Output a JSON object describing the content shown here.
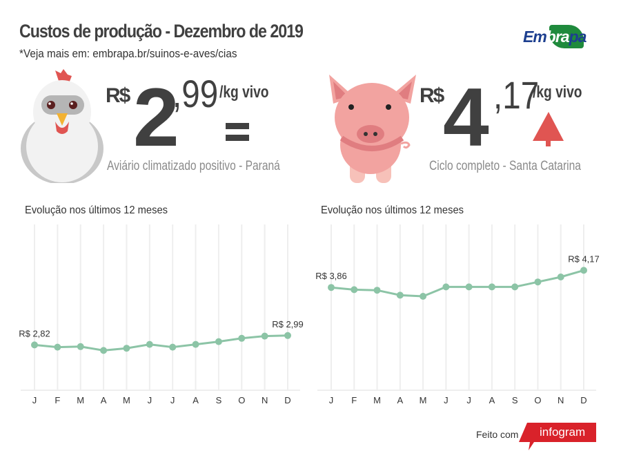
{
  "header": {
    "title": "Custos de produção - Dezembro de 2019",
    "subtitle": "*Veja mais em: embrapa.br/suinos-e-aves/cias",
    "logo": "Embrapa"
  },
  "chicken": {
    "icon": "chicken-icon",
    "currency": "R$",
    "integer": "2",
    "decimal": ",99",
    "unit": "/kg vivo",
    "trend": "equal",
    "trend_icon": "equals-icon",
    "description": "Aviário climatizado positivo - Paraná"
  },
  "pig": {
    "icon": "pig-icon",
    "currency": "R$",
    "integer": "4",
    "decimal": ",17",
    "unit": "/kg vivo",
    "trend": "up",
    "trend_icon": "arrow-up-icon",
    "trend_color": "#e05552",
    "description": "Ciclo completo - Santa Catarina"
  },
  "footer": {
    "made_with": "Feito com",
    "brand": "infogram",
    "brand_color": "#d9222a"
  },
  "colors": {
    "line": "#8cc4a6",
    "text": "#404040",
    "grid": "#eeeeee"
  },
  "chart_data": [
    {
      "type": "line",
      "title": "Evolução nos últimos 12 meses",
      "categories": [
        "J",
        "F",
        "M",
        "A",
        "M",
        "J",
        "J",
        "A",
        "S",
        "O",
        "N",
        "D"
      ],
      "values": [
        2.82,
        2.78,
        2.79,
        2.72,
        2.76,
        2.83,
        2.78,
        2.83,
        2.88,
        2.94,
        2.98,
        2.99
      ],
      "labels": [
        {
          "index": 0,
          "text": "R$ 2,82"
        },
        {
          "index": 11,
          "text": "R$ 2,99"
        }
      ],
      "ylim": [
        2,
        5
      ],
      "grid": "vertical"
    },
    {
      "type": "line",
      "title": "Evolução nos últimos 12 meses",
      "categories": [
        "J",
        "F",
        "M",
        "A",
        "M",
        "J",
        "J",
        "A",
        "S",
        "O",
        "N",
        "D"
      ],
      "values": [
        3.86,
        3.82,
        3.81,
        3.72,
        3.7,
        3.87,
        3.87,
        3.87,
        3.87,
        3.96,
        4.05,
        4.17
      ],
      "labels": [
        {
          "index": 0,
          "text": "R$ 3,86"
        },
        {
          "index": 11,
          "text": "R$ 4,17"
        }
      ],
      "ylim": [
        2,
        5
      ],
      "grid": "vertical"
    }
  ]
}
